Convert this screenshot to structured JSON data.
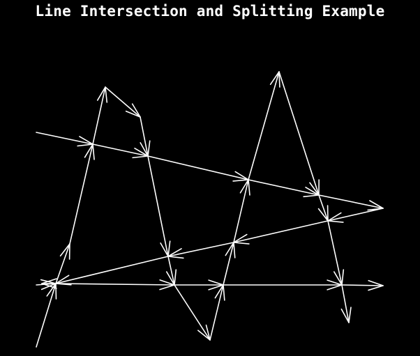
{
  "title": "Line Intersection and Splitting Example",
  "colors": {
    "background": "#000000",
    "stroke": "#ffffff"
  }
}
